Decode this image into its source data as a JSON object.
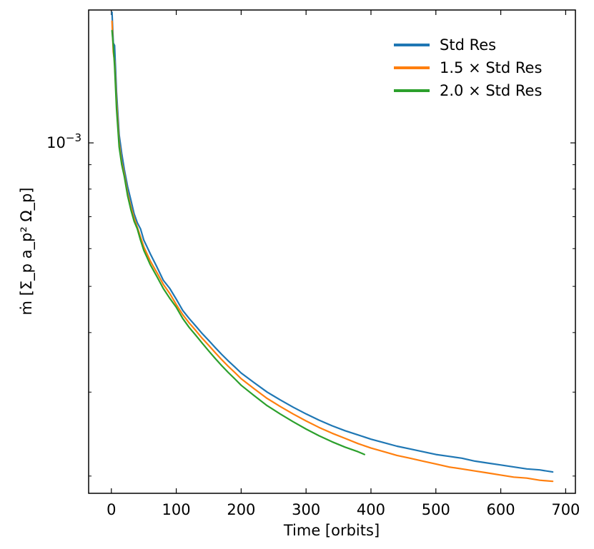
{
  "chart_data": {
    "type": "line",
    "title": "",
    "xlabel": "Time [orbits]",
    "ylabel": "ṁ [Σ_p a_p² Ω_p]",
    "yscale": "log",
    "xlim": [
      -35,
      715
    ],
    "ylim": [
      0.000184,
      0.0019
    ],
    "x_ticks": [
      0,
      100,
      200,
      300,
      400,
      500,
      600,
      700
    ],
    "x_tick_labels": [
      "0",
      "100",
      "200",
      "300",
      "400",
      "500",
      "600",
      "700"
    ],
    "y_ticks_major": [
      0.001
    ],
    "y_tick_labels": [
      {
        "base": "10",
        "exp": "−3"
      }
    ],
    "y_ticks_minor": [
      0.0002,
      0.0003,
      0.0004,
      0.0005,
      0.0006,
      0.0007,
      0.0008,
      0.0009
    ],
    "legend_position": "top-right",
    "series": [
      {
        "name": "Std Res",
        "label_parts": [
          "Std Res"
        ],
        "color": "#1f77b4",
        "x": [
          1,
          3,
          5,
          8,
          12,
          16,
          20,
          25,
          30,
          35,
          40,
          45,
          50,
          55,
          60,
          70,
          80,
          90,
          100,
          110,
          120,
          130,
          140,
          150,
          160,
          170,
          180,
          190,
          200,
          220,
          240,
          260,
          280,
          300,
          320,
          340,
          360,
          380,
          400,
          420,
          440,
          460,
          480,
          500,
          520,
          540,
          560,
          580,
          600,
          620,
          640,
          660,
          680
        ],
        "y": [
          0.00188,
          0.00162,
          0.0016,
          0.00128,
          0.00104,
          0.00095,
          0.00088,
          0.00081,
          0.00076,
          0.00071,
          0.00068,
          0.00066,
          0.000625,
          0.000605,
          0.000585,
          0.00055,
          0.000515,
          0.000495,
          0.00047,
          0.000445,
          0.000428,
          0.000413,
          0.000398,
          0.000385,
          0.000372,
          0.00036,
          0.000349,
          0.000339,
          0.000329,
          0.000314,
          0.0003,
          0.000289,
          0.000279,
          0.00027,
          0.000262,
          0.000255,
          0.000249,
          0.000244,
          0.000239,
          0.000235,
          0.000231,
          0.000228,
          0.000225,
          0.000222,
          0.00022,
          0.000218,
          0.000215,
          0.000213,
          0.000211,
          0.000209,
          0.000207,
          0.000206,
          0.000204
        ]
      },
      {
        "name": "1.5 × Std Res",
        "label_parts": [
          "1.5",
          "×",
          "Std Res"
        ],
        "color": "#ff7f0e",
        "x": [
          1,
          3,
          5,
          8,
          12,
          16,
          20,
          25,
          30,
          35,
          40,
          45,
          50,
          55,
          60,
          70,
          80,
          90,
          100,
          110,
          120,
          130,
          140,
          150,
          160,
          170,
          180,
          190,
          200,
          220,
          240,
          260,
          280,
          300,
          320,
          340,
          360,
          380,
          400,
          420,
          440,
          460,
          480,
          500,
          520,
          540,
          560,
          580,
          600,
          620,
          640,
          660,
          680
        ],
        "y": [
          0.0018,
          0.00155,
          0.00148,
          0.00122,
          0.001,
          0.00091,
          0.00086,
          0.000785,
          0.000735,
          0.000695,
          0.000665,
          0.000635,
          0.000605,
          0.000585,
          0.000565,
          0.000535,
          0.000505,
          0.000483,
          0.000458,
          0.000436,
          0.000419,
          0.000404,
          0.000389,
          0.000376,
          0.000363,
          0.000351,
          0.00034,
          0.00033,
          0.00032,
          0.000305,
          0.000291,
          0.00028,
          0.00027,
          0.000261,
          0.000253,
          0.000246,
          0.00024,
          0.000234,
          0.000229,
          0.000225,
          0.000221,
          0.000218,
          0.000215,
          0.000212,
          0.000209,
          0.000207,
          0.000205,
          0.000203,
          0.000201,
          0.000199,
          0.000198,
          0.000196,
          0.000195
        ]
      },
      {
        "name": "2.0 × Std Res",
        "label_parts": [
          "2.0",
          "×",
          "Std Res"
        ],
        "color": "#2ca02c",
        "x": [
          1,
          3,
          5,
          8,
          12,
          16,
          20,
          25,
          30,
          35,
          40,
          45,
          50,
          55,
          60,
          70,
          80,
          90,
          100,
          110,
          120,
          130,
          140,
          150,
          160,
          170,
          180,
          190,
          200,
          220,
          240,
          260,
          280,
          300,
          320,
          340,
          360,
          380,
          390
        ],
        "y": [
          0.00172,
          0.0016,
          0.00145,
          0.00118,
          0.00098,
          0.0009,
          0.00085,
          0.000775,
          0.000725,
          0.000685,
          0.00066,
          0.000625,
          0.000595,
          0.000575,
          0.000555,
          0.000525,
          0.000495,
          0.000472,
          0.000452,
          0.000428,
          0.00041,
          0.000395,
          0.00038,
          0.000366,
          0.000353,
          0.000341,
          0.00033,
          0.00032,
          0.00031,
          0.000295,
          0.000281,
          0.00027,
          0.00026,
          0.000251,
          0.000243,
          0.000236,
          0.00023,
          0.000225,
          0.000222
        ]
      }
    ]
  }
}
